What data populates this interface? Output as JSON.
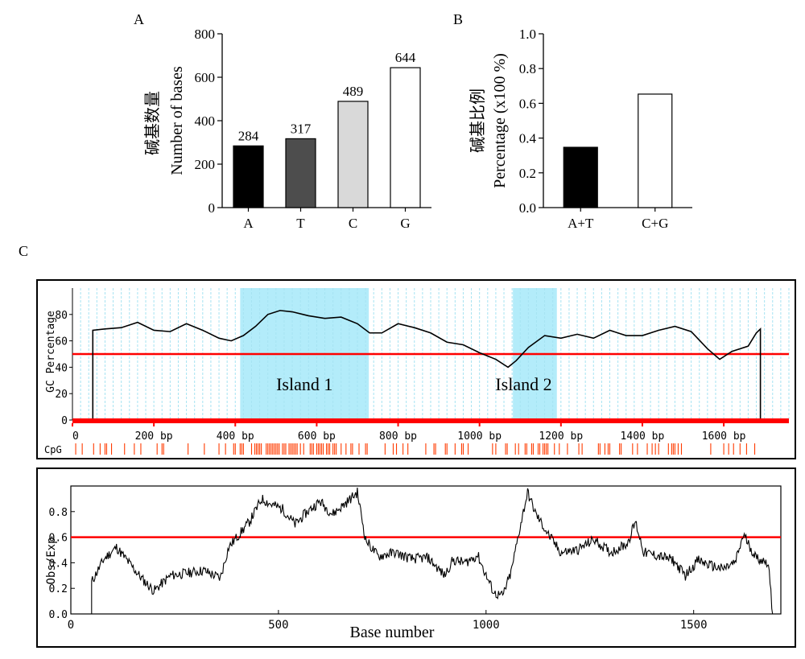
{
  "panel_letters": {
    "a": "A",
    "b": "B",
    "c": "C"
  },
  "chart_data": [
    {
      "type": "bar",
      "panel": "A",
      "categories": [
        "A",
        "T",
        "C",
        "G"
      ],
      "values": [
        284,
        317,
        489,
        644
      ],
      "data_labels": [
        "284",
        "317",
        "489",
        "644"
      ],
      "bar_colors": [
        "#000000",
        "#4d4d4d",
        "#d9d9d9",
        "#ffffff"
      ],
      "ylabel_cn": "碱基数量",
      "ylabel": "Number of bases",
      "ylim": [
        0,
        800
      ],
      "yticks": [
        0,
        200,
        400,
        600,
        800
      ],
      "ytick_labels": [
        "0",
        "200",
        "400",
        "600",
        "800"
      ]
    },
    {
      "type": "bar",
      "panel": "B",
      "categories": [
        "A+T",
        "C+G"
      ],
      "values": [
        0.347,
        0.653
      ],
      "bar_colors": [
        "#000000",
        "#ffffff"
      ],
      "ylabel_cn": "碱基比例",
      "ylabel": "Percentage (x100 %)",
      "ylim": [
        0,
        1.0
      ],
      "yticks": [
        0,
        0.2,
        0.4,
        0.6,
        0.8,
        1.0
      ],
      "ytick_labels": [
        "0.0",
        "0.2",
        "0.4",
        "0.6",
        "0.8",
        "1.0"
      ]
    },
    {
      "type": "line",
      "panel": "C-top",
      "ylabel": "GC Percentage",
      "xlim": [
        0,
        1760
      ],
      "ylim": [
        0,
        100
      ],
      "yticks": [
        0,
        20,
        40,
        60,
        80
      ],
      "ytick_labels": [
        "0",
        "20",
        "40",
        "60",
        "80"
      ],
      "xticks": [
        0,
        200,
        400,
        600,
        800,
        1000,
        1200,
        1400,
        1600
      ],
      "xtick_labels": [
        "0",
        "200 bp",
        "400 bp",
        "600 bp",
        "800 bp",
        "1000 bp",
        "1200 bp",
        "1400 bp",
        "1600 bp"
      ],
      "threshold": 50,
      "islands": [
        {
          "label": "Island 1",
          "start": 412,
          "end": 728
        },
        {
          "label": "Island 2",
          "start": 1082,
          "end": 1190
        }
      ],
      "cpg_label": "CpG",
      "x": [
        50,
        80,
        120,
        160,
        200,
        240,
        280,
        320,
        360,
        390,
        420,
        450,
        480,
        510,
        540,
        580,
        620,
        660,
        700,
        730,
        760,
        800,
        840,
        880,
        920,
        960,
        1000,
        1040,
        1070,
        1090,
        1120,
        1160,
        1200,
        1240,
        1280,
        1320,
        1360,
        1400,
        1440,
        1480,
        1520,
        1560,
        1590,
        1620,
        1660,
        1680,
        1690
      ],
      "y": [
        68,
        69,
        70,
        74,
        68,
        67,
        73,
        68,
        62,
        60,
        64,
        71,
        80,
        83,
        82,
        79,
        77,
        78,
        73,
        66,
        66,
        73,
        70,
        66,
        59,
        57,
        51,
        46,
        40,
        45,
        55,
        64,
        62,
        65,
        62,
        68,
        64,
        64,
        68,
        71,
        67,
        54,
        46,
        52,
        56,
        66,
        69
      ],
      "line_color": "#000000",
      "threshold_color": "#ff0000",
      "island_color": "#b3ecfa",
      "grid_color": "#a6e3f2"
    },
    {
      "type": "line",
      "panel": "C-bottom",
      "ylabel": "Obs/Exp",
      "xlabel": "Base number",
      "xlim": [
        0,
        1710
      ],
      "ylim": [
        0,
        1.0
      ],
      "yticks": [
        0,
        0.2,
        0.4,
        0.6,
        0.8
      ],
      "ytick_labels": [
        "0.0",
        "0.2",
        "0.4",
        "0.6",
        "0.8"
      ],
      "xticks": [
        0,
        500,
        1000,
        1500
      ],
      "xtick_labels": [
        "0",
        "500",
        "1000",
        "1500"
      ],
      "threshold": 0.6,
      "x": [
        50,
        80,
        110,
        140,
        170,
        200,
        240,
        280,
        320,
        360,
        380,
        400,
        430,
        460,
        480,
        510,
        540,
        570,
        600,
        630,
        660,
        690,
        710,
        740,
        780,
        820,
        860,
        900,
        920,
        950,
        980,
        1000,
        1020,
        1040,
        1060,
        1080,
        1100,
        1120,
        1150,
        1180,
        1220,
        1260,
        1300,
        1340,
        1360,
        1380,
        1420,
        1450,
        1480,
        1510,
        1540,
        1570,
        1600,
        1620,
        1650,
        1680,
        1690
      ],
      "y": [
        0.25,
        0.43,
        0.52,
        0.4,
        0.28,
        0.18,
        0.3,
        0.32,
        0.34,
        0.28,
        0.52,
        0.6,
        0.72,
        0.9,
        0.86,
        0.82,
        0.7,
        0.8,
        0.88,
        0.78,
        0.86,
        0.95,
        0.58,
        0.45,
        0.48,
        0.43,
        0.44,
        0.3,
        0.42,
        0.4,
        0.46,
        0.3,
        0.16,
        0.14,
        0.32,
        0.65,
        0.95,
        0.78,
        0.62,
        0.48,
        0.5,
        0.58,
        0.48,
        0.55,
        0.72,
        0.48,
        0.45,
        0.42,
        0.3,
        0.42,
        0.38,
        0.35,
        0.4,
        0.62,
        0.44,
        0.4,
        0.0
      ],
      "line_color": "#000000",
      "threshold_color": "#ff0000"
    }
  ]
}
